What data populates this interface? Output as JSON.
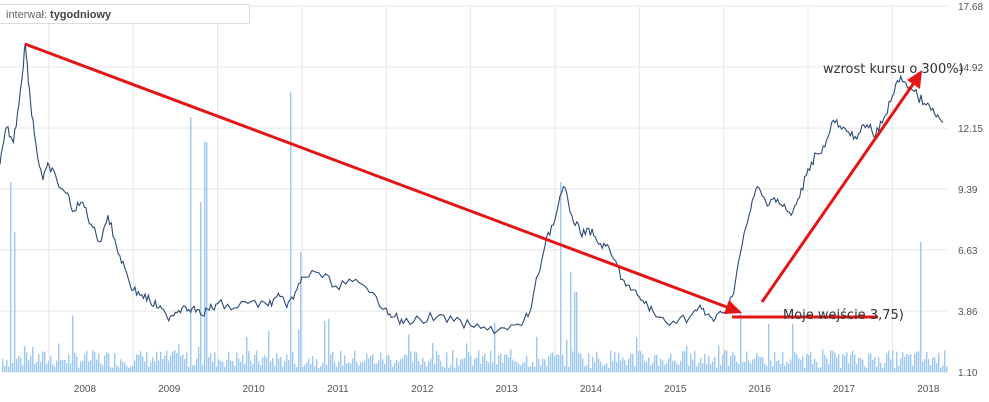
{
  "interval": {
    "label": "interwał:",
    "value": "tygodniowy"
  },
  "chart_data": {
    "type": "line",
    "x_ticks": [
      "2008",
      "2009",
      "2010",
      "2011",
      "2012",
      "2013",
      "2014",
      "2015",
      "2016",
      "2017",
      "2018"
    ],
    "y_ticks": [
      1.1,
      3.86,
      6.63,
      9.39,
      12.15,
      14.92,
      17.68
    ],
    "y_tick_labels": [
      "1.10",
      "3.86",
      "6.63",
      "9.39",
      "12.15",
      "14.92",
      "17.68"
    ],
    "ylim": [
      1.1,
      17.68
    ],
    "xlim": [
      2007.42,
      2018.66
    ],
    "series": [
      {
        "type": "line",
        "color": "#2c4a7a",
        "x": [
          2007.42,
          2007.5,
          2007.58,
          2007.66,
          2007.72,
          2007.78,
          2007.86,
          2007.93,
          2008.0,
          2008.1,
          2008.2,
          2008.3,
          2008.4,
          2008.5,
          2008.6,
          2008.7,
          2008.8,
          2008.9,
          2009.0,
          2009.1,
          2009.2,
          2009.3,
          2009.4,
          2009.5,
          2009.6,
          2009.7,
          2009.8,
          2009.9,
          2010.0,
          2010.2,
          2010.4,
          2010.6,
          2010.7,
          2010.8,
          2010.9,
          2011.0,
          2011.2,
          2011.4,
          2011.6,
          2011.8,
          2012.0,
          2012.1,
          2012.2,
          2012.4,
          2012.6,
          2012.8,
          2013.0,
          2013.2,
          2013.4,
          2013.6,
          2013.7,
          2013.8,
          2013.9,
          2014.0,
          2014.1,
          2014.2,
          2014.3,
          2014.4,
          2014.5,
          2014.6,
          2014.7,
          2014.8,
          2014.9,
          2015.0,
          2015.1,
          2015.2,
          2015.4,
          2015.6,
          2015.7,
          2015.8,
          2015.9,
          2016.0,
          2016.1,
          2016.2,
          2016.3,
          2016.4,
          2016.5,
          2016.6,
          2016.7,
          2016.8,
          2016.9,
          2017.0,
          2017.1,
          2017.2,
          2017.3,
          2017.4,
          2017.5,
          2017.6,
          2017.7,
          2017.8,
          2017.9,
          2018.0,
          2018.1,
          2018.2,
          2018.3,
          2018.4,
          2018.5,
          2018.6
        ],
        "y": [
          10.5,
          12.2,
          11.5,
          13.8,
          16.0,
          13.4,
          11.0,
          9.8,
          10.5,
          9.7,
          9.2,
          8.4,
          8.8,
          7.8,
          7.0,
          8.2,
          6.8,
          5.8,
          4.8,
          4.6,
          4.3,
          4.0,
          3.6,
          3.8,
          4.1,
          4.0,
          3.7,
          3.9,
          4.2,
          4.0,
          4.3,
          4.1,
          4.5,
          4.2,
          4.4,
          5.4,
          5.6,
          5.0,
          5.2,
          4.7,
          4.0,
          3.6,
          3.3,
          3.5,
          3.6,
          3.4,
          3.2,
          3.0,
          3.1,
          3.2,
          3.8,
          5.5,
          7.2,
          8.0,
          9.5,
          8.2,
          7.4,
          7.6,
          7.0,
          6.8,
          6.2,
          5.3,
          4.8,
          4.5,
          4.1,
          3.6,
          3.4,
          3.6,
          4.0,
          3.7,
          3.5,
          3.8,
          4.5,
          6.5,
          8.2,
          9.5,
          8.8,
          9.0,
          8.6,
          8.2,
          9.0,
          10.3,
          11.0,
          11.3,
          12.5,
          12.1,
          11.8,
          11.9,
          12.3,
          11.8,
          12.6,
          13.6,
          14.5,
          14.0,
          13.6,
          13.2,
          12.8,
          12.4
        ]
      },
      {
        "type": "bar",
        "color": "#9cc8f4",
        "name": "volume"
      }
    ],
    "annotations": [
      {
        "text": "wzrost kursu o 300%)"
      },
      {
        "text": "Moje wejście 3,75)"
      }
    ],
    "grid": true
  },
  "colors": {
    "line": "#2c4a7a",
    "volume": "#9cc8f4",
    "arrow": "#e31515",
    "grid": "#e6e6e6"
  }
}
